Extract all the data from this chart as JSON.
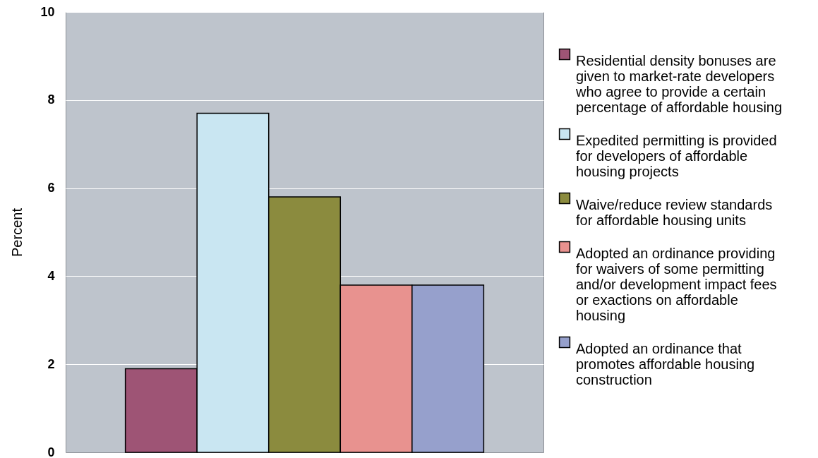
{
  "chart_data": {
    "type": "bar",
    "ylabel": "Percent",
    "categories": [
      null
    ],
    "series": [
      {
        "name": "Residential density bonuses are given to market-rate developers who agree to provide a certain percentage of affordable housing",
        "color": "#9e5475",
        "values": [
          1.9
        ]
      },
      {
        "name": "Expedited permitting is provided for developers of affordable housing projects",
        "color": "#c9e6f2",
        "values": [
          7.7
        ]
      },
      {
        "name": "Waive/reduce review standards for affordable housing units",
        "color": "#8b8b3e",
        "values": [
          5.8
        ]
      },
      {
        "name": "Adopted an ordinance providing for waivers of some permitting and/or development impact fees or exactions on affordable housing",
        "color": "#e8928f",
        "values": [
          3.8
        ]
      },
      {
        "name": "Adopted an ordinance that promotes affordable housing construction",
        "color": "#96a0cc",
        "values": [
          3.8
        ]
      }
    ],
    "ylim": [
      0,
      10
    ],
    "yticks": [
      0,
      2,
      4,
      6,
      8,
      10
    ],
    "grid": "y",
    "legend": "right",
    "tick_labels": "y"
  }
}
